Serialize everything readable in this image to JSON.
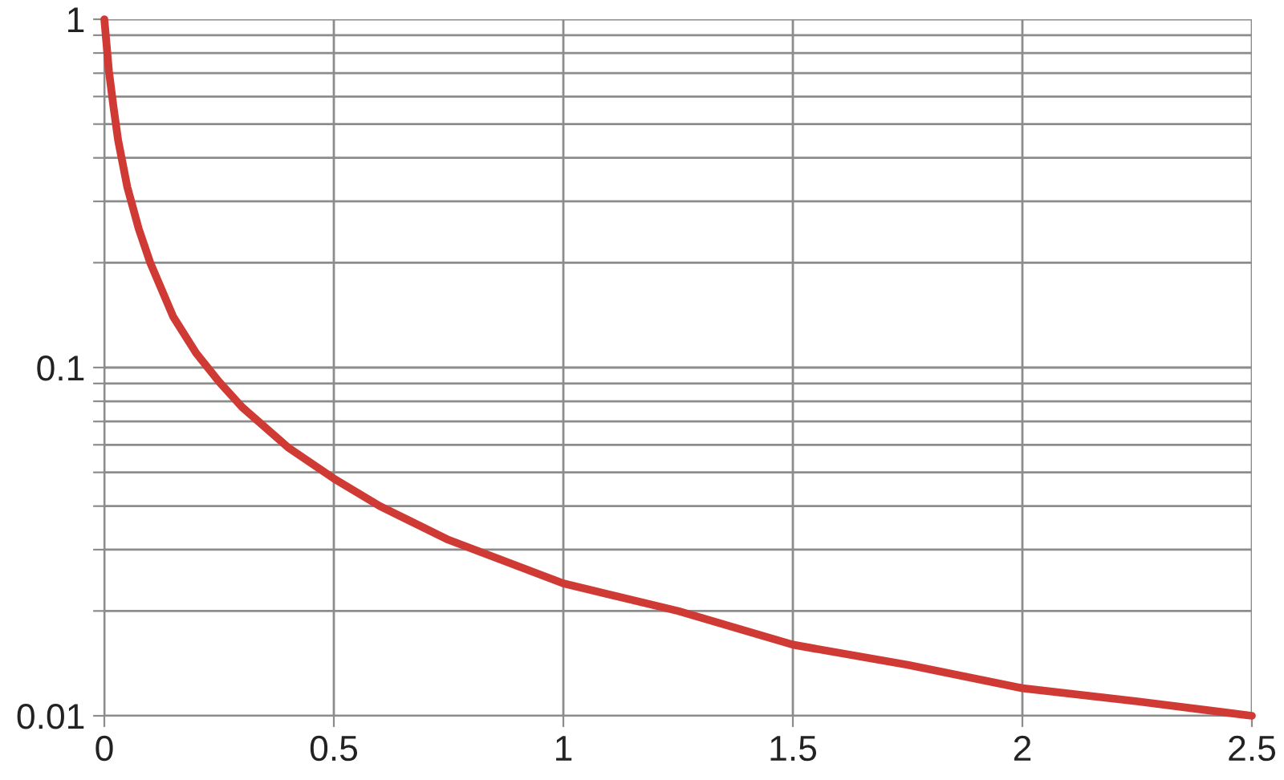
{
  "chart_data": {
    "type": "line",
    "log": "y",
    "grid": true,
    "marker": "none",
    "line_style": "solid",
    "x": [
      0,
      0.01,
      0.02,
      0.03,
      0.05,
      0.075,
      0.1,
      0.15,
      0.2,
      0.25,
      0.3,
      0.4,
      0.5,
      0.6,
      0.75,
      1,
      1.25,
      1.5,
      1.75,
      2,
      2.25,
      2.5
    ],
    "series": [
      {
        "color": "#d03a35",
        "values": [
          1,
          0.71,
          0.56,
          0.45,
          0.33,
          0.25,
          0.2,
          0.14,
          0.11,
          0.091,
          0.077,
          0.059,
          0.048,
          0.04,
          0.032,
          0.024,
          0.02,
          0.016,
          0.014,
          0.012,
          0.011,
          0.01
        ]
      }
    ],
    "xlim": [
      0,
      2.5
    ],
    "xticks": [
      0,
      0.5,
      1,
      1.5,
      2,
      2.5
    ],
    "ylim": [
      0.01,
      1
    ],
    "yticks": [
      {
        "value": 0.01,
        "label": "0.01"
      },
      {
        "value": 0.02,
        "label": null
      },
      {
        "value": 0.03,
        "label": null
      },
      {
        "value": 0.04,
        "label": null
      },
      {
        "value": 0.05,
        "label": null
      },
      {
        "value": 0.06,
        "label": null
      },
      {
        "value": 0.07,
        "label": null
      },
      {
        "value": 0.08,
        "label": null
      },
      {
        "value": 0.09,
        "label": null
      },
      {
        "value": 0.1,
        "label": "0.1"
      },
      {
        "value": 0.2,
        "label": null
      },
      {
        "value": 0.3,
        "label": null
      },
      {
        "value": 0.4,
        "label": null
      },
      {
        "value": 0.5,
        "label": null
      },
      {
        "value": 0.6,
        "label": null
      },
      {
        "value": 0.7,
        "label": null
      },
      {
        "value": 0.8,
        "label": null
      },
      {
        "value": 0.9,
        "label": null
      },
      {
        "value": 1,
        "label": "1"
      }
    ]
  }
}
